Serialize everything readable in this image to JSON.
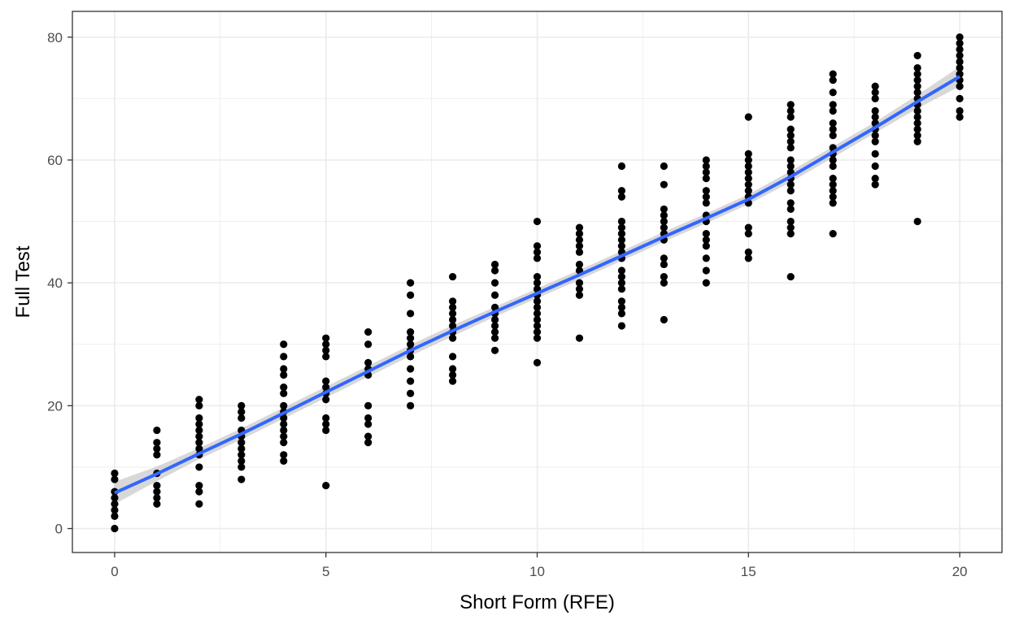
{
  "chart_data": {
    "type": "scatter",
    "xlabel": "Short Form (RFE)",
    "ylabel": "Full Test",
    "xlim": [
      -1,
      21
    ],
    "ylim": [
      -3.9,
      84.2
    ],
    "x_ticks": [
      0,
      5,
      10,
      15,
      20
    ],
    "y_ticks": [
      0,
      20,
      40,
      60,
      80
    ],
    "x_tick_labels": [
      "0",
      "5",
      "10",
      "15",
      "20"
    ],
    "y_tick_labels": [
      "0",
      "20",
      "40",
      "60",
      "80"
    ],
    "grid": true,
    "legend": "none",
    "colors": {
      "points": "#000000",
      "smooth_line": "#3366ff",
      "ribbon": "#bebebe",
      "grid": "#ebebeb",
      "panel_border": "#333333"
    },
    "points": [
      {
        "x": 0,
        "ys": [
          0,
          2,
          3,
          4,
          5,
          6,
          8,
          9
        ]
      },
      {
        "x": 1,
        "ys": [
          4,
          5,
          6,
          7,
          9,
          12,
          13,
          14,
          16
        ]
      },
      {
        "x": 2,
        "ys": [
          4,
          6,
          7,
          10,
          12,
          13,
          14,
          15,
          16,
          17,
          18,
          20,
          21
        ]
      },
      {
        "x": 3,
        "ys": [
          8,
          10,
          11,
          12,
          13,
          14,
          15,
          16,
          18,
          19,
          20
        ]
      },
      {
        "x": 4,
        "ys": [
          11,
          12,
          14,
          15,
          16,
          17,
          18,
          19,
          20,
          22,
          23,
          25,
          26,
          28,
          30
        ]
      },
      {
        "x": 5,
        "ys": [
          7,
          16,
          17,
          18,
          21,
          22,
          23,
          24,
          28,
          29,
          30,
          31
        ]
      },
      {
        "x": 6,
        "ys": [
          14,
          15,
          17,
          18,
          20,
          25,
          26,
          27,
          30,
          32
        ]
      },
      {
        "x": 7,
        "ys": [
          20,
          22,
          24,
          26,
          28,
          29,
          30,
          31,
          32,
          35,
          38,
          40
        ]
      },
      {
        "x": 8,
        "ys": [
          24,
          25,
          26,
          28,
          31,
          32,
          33,
          34,
          35,
          36,
          37,
          41
        ]
      },
      {
        "x": 9,
        "ys": [
          29,
          31,
          32,
          33,
          34,
          35,
          36,
          38,
          40,
          42,
          43
        ]
      },
      {
        "x": 10,
        "ys": [
          27,
          31,
          32,
          33,
          34,
          35,
          36,
          37,
          38,
          39,
          40,
          41,
          44,
          45,
          46,
          50
        ]
      },
      {
        "x": 11,
        "ys": [
          31,
          38,
          39,
          40,
          42,
          43,
          45,
          46,
          47,
          48,
          49
        ]
      },
      {
        "x": 12,
        "ys": [
          33,
          35,
          36,
          37,
          39,
          40,
          41,
          42,
          44,
          45,
          46,
          47,
          48,
          49,
          50,
          54,
          55,
          59
        ]
      },
      {
        "x": 13,
        "ys": [
          34,
          40,
          41,
          43,
          44,
          47,
          48,
          49,
          50,
          51,
          52,
          56,
          59
        ]
      },
      {
        "x": 14,
        "ys": [
          40,
          42,
          44,
          46,
          47,
          48,
          50,
          51,
          53,
          54,
          55,
          57,
          58,
          59,
          60
        ]
      },
      {
        "x": 15,
        "ys": [
          44,
          45,
          48,
          49,
          53,
          54,
          55,
          56,
          57,
          58,
          59,
          60,
          61,
          67
        ]
      },
      {
        "x": 16,
        "ys": [
          41,
          48,
          49,
          50,
          52,
          53,
          55,
          56,
          57,
          58,
          59,
          60,
          62,
          63,
          64,
          65,
          67,
          68,
          69
        ]
      },
      {
        "x": 17,
        "ys": [
          48,
          53,
          54,
          55,
          56,
          57,
          59,
          60,
          61,
          62,
          64,
          65,
          66,
          68,
          69,
          71,
          73,
          74
        ]
      },
      {
        "x": 18,
        "ys": [
          56,
          57,
          59,
          61,
          63,
          64,
          65,
          66,
          67,
          68,
          70,
          71,
          72
        ]
      },
      {
        "x": 19,
        "ys": [
          50,
          63,
          64,
          65,
          66,
          67,
          68,
          69,
          70,
          71,
          72,
          73,
          74,
          75,
          77
        ]
      },
      {
        "x": 20,
        "ys": [
          67,
          68,
          70,
          72,
          73,
          74,
          75,
          76,
          77,
          78,
          79,
          80
        ]
      }
    ],
    "smooth_line": {
      "x": [
        0,
        1,
        2,
        3,
        4,
        5,
        6,
        7,
        8,
        9,
        10,
        11,
        12,
        13,
        14,
        15,
        16,
        17,
        18,
        19,
        20
      ],
      "y": [
        5.8,
        8.9,
        12.2,
        15.4,
        18.8,
        22.2,
        25.6,
        29.0,
        32.2,
        35.3,
        38.3,
        41.3,
        44.4,
        47.5,
        50.5,
        53.6,
        57.3,
        61.3,
        65.3,
        69.5,
        73.6
      ],
      "ci_halfwidth": [
        1.8,
        1.2,
        0.9,
        0.9,
        0.9,
        0.9,
        0.9,
        0.9,
        0.9,
        0.8,
        0.8,
        0.8,
        0.8,
        0.8,
        0.8,
        0.8,
        0.9,
        0.9,
        0.9,
        1.1,
        1.6
      ]
    }
  }
}
